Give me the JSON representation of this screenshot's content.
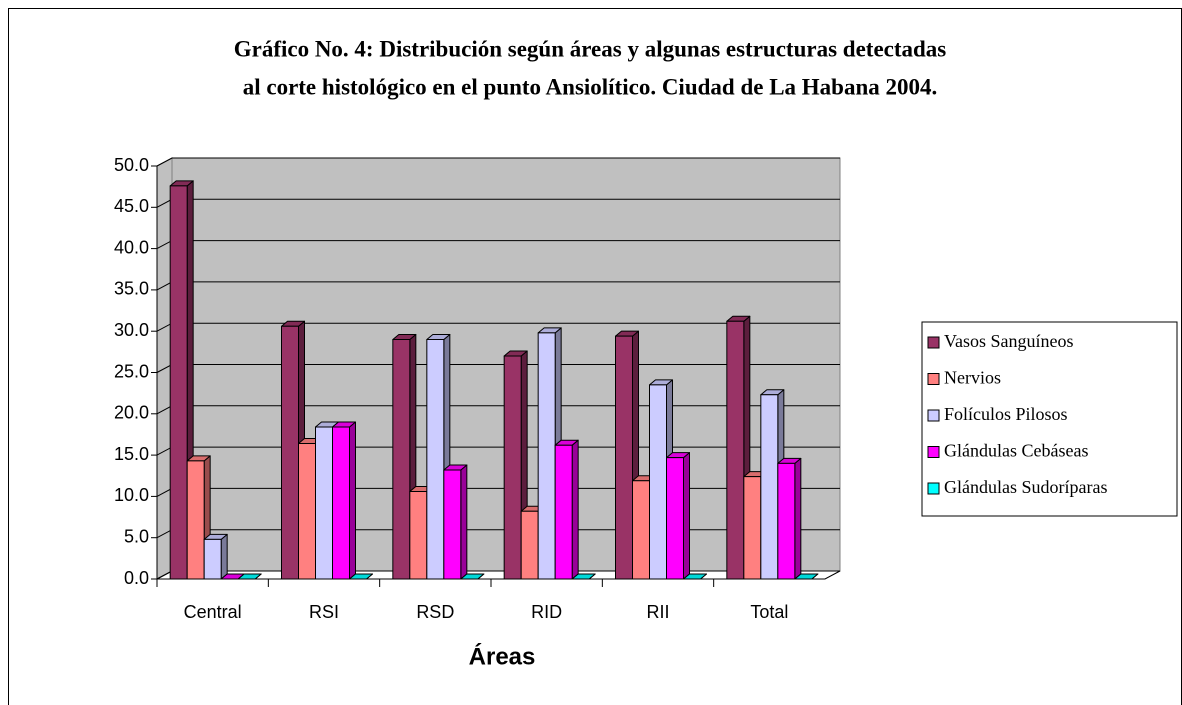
{
  "chart_data": {
    "type": "bar3d",
    "title": [
      "Gráfico No. 4: Distribución según áreas y algunas estructuras detectadas",
      "al corte histológico en el punto Ansiolítico. Ciudad de La Habana 2004."
    ],
    "x_label": "Áreas",
    "categories": [
      "Central",
      "RSI",
      "RSD",
      "RID",
      "RII",
      "Total"
    ],
    "series": [
      {
        "name": "Vasos Sanguíneos",
        "color": "#993366",
        "values": [
          47.6,
          30.6,
          29.0,
          27.0,
          29.4,
          31.2
        ]
      },
      {
        "name": "Nervios",
        "color": "#FF8080",
        "values": [
          14.3,
          16.4,
          10.6,
          8.2,
          11.9,
          12.4
        ]
      },
      {
        "name": "Folículos Pilosos",
        "color": "#CCCCFF",
        "values": [
          4.8,
          18.4,
          29.0,
          29.8,
          23.5,
          22.3
        ]
      },
      {
        "name": "Glándulas Cebáseas",
        "color": "#FF00FF",
        "values": [
          0,
          18.4,
          13.2,
          16.2,
          14.7,
          14.0
        ]
      },
      {
        "name": "Glándulas Sudoríparas",
        "color": "#00FFFF",
        "values": [
          0,
          0,
          0,
          0,
          0,
          0
        ]
      }
    ],
    "ylim": [
      0,
      50
    ],
    "yticks": [
      {
        "value": 0,
        "label": "0.0"
      },
      {
        "value": 5,
        "label": "5.0"
      },
      {
        "value": 10,
        "label": "10.0"
      },
      {
        "value": 15,
        "label": "15.0"
      },
      {
        "value": 20,
        "label": "20.0"
      },
      {
        "value": 25,
        "label": "25.0"
      },
      {
        "value": 30,
        "label": "30.0"
      },
      {
        "value": 35,
        "label": "35.0"
      },
      {
        "value": 40,
        "label": "40.0"
      },
      {
        "value": 45,
        "label": "45.0"
      },
      {
        "value": 50,
        "label": "50.0"
      }
    ],
    "grid": true,
    "legend": "right",
    "wall_color": "#C0C0C0"
  }
}
